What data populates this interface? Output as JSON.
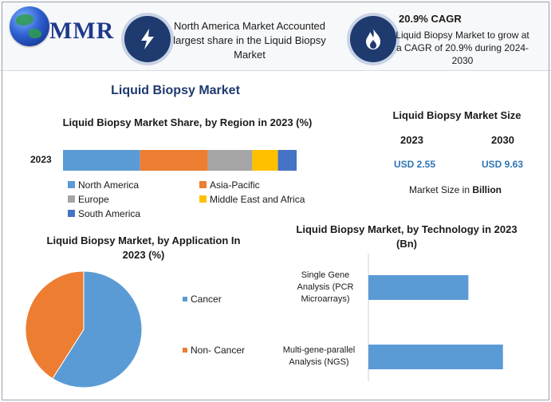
{
  "brand": {
    "logo_text": "MMR"
  },
  "highlights": {
    "region": {
      "text": "North America Market Accounted largest share in the Liquid Biopsy Market",
      "icon": "lightning-bolt-icon"
    },
    "cagr": {
      "title": "20.9% CAGR",
      "text": "Liquid Biopsy Market to grow at a CAGR of 20.9% during 2024-2030",
      "icon": "flame-icon"
    }
  },
  "main_title": "Liquid Biopsy Market",
  "market_size": {
    "title": "Liquid Biopsy Market Size",
    "years": [
      "2023",
      "2030"
    ],
    "values": [
      "USD 2.55",
      "USD 9.63"
    ],
    "note_prefix": "Market Size in",
    "note_unit": "Billion"
  },
  "colors": {
    "north_america": "#5b9bd5",
    "asia_pacific": "#ed7d31",
    "europe": "#a5a5a5",
    "middle_east_africa": "#ffc000",
    "south_america": "#4472c4",
    "navy": "#1e3a6e"
  },
  "chart_data": [
    {
      "type": "bar",
      "orientation": "horizontal-stacked",
      "title": "Liquid Biopsy Market Share, by Region in 2023 (%)",
      "categories": [
        "2023"
      ],
      "series": [
        {
          "name": "North America",
          "values": [
            33
          ]
        },
        {
          "name": "Asia-Pacific",
          "values": [
            29
          ]
        },
        {
          "name": "Europe",
          "values": [
            19
          ]
        },
        {
          "name": "Middle East and Africa",
          "values": [
            11
          ]
        },
        {
          "name": "South America",
          "values": [
            8
          ]
        }
      ],
      "legend": "bottom"
    },
    {
      "type": "pie",
      "title": "Liquid Biopsy Market, by Application In 2023 (%)",
      "categories": [
        "Cancer",
        "Non- Cancer"
      ],
      "values": [
        59,
        41
      ],
      "legend": "right"
    },
    {
      "type": "bar",
      "orientation": "horizontal",
      "title": "Liquid Biopsy Market, by Technology in 2023 (Bn)",
      "categories": [
        "Single Gene Analysis (PCR Microarrays)",
        "Multi-gene-parallel Analysis (NGS)"
      ],
      "values": [
        1.1,
        1.48
      ],
      "xlim": [
        0,
        2.0
      ]
    }
  ]
}
